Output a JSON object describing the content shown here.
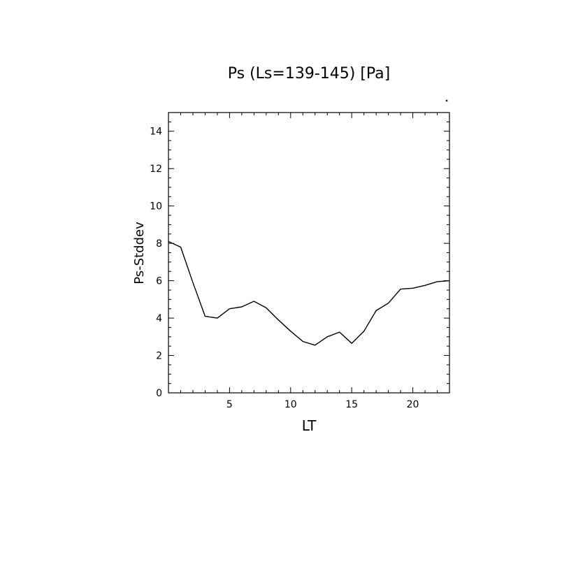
{
  "chart_data": {
    "type": "line",
    "title": "Ps (Ls=139-145) [Pa]",
    "xlabel": "LT",
    "ylabel": "Ps-Stddev",
    "xlim": [
      0,
      23
    ],
    "ylim": [
      0,
      15
    ],
    "x_ticks": [
      5,
      10,
      15,
      20
    ],
    "y_ticks": [
      0,
      2,
      4,
      6,
      8,
      10,
      12,
      14
    ],
    "grid": false,
    "series": [
      {
        "color": "#000000",
        "x": [
          0,
          1,
          2,
          3,
          4,
          5,
          6,
          7,
          8,
          9,
          10,
          11,
          12,
          13,
          14,
          15,
          16,
          17,
          18,
          19,
          20,
          21,
          22,
          23
        ],
        "y": [
          8.1,
          7.8,
          5.9,
          4.1,
          4.0,
          4.5,
          4.6,
          4.9,
          4.55,
          3.9,
          3.3,
          2.75,
          2.55,
          3.0,
          3.25,
          2.65,
          3.3,
          4.4,
          4.8,
          5.55,
          5.6,
          5.75,
          5.95,
          6.0
        ]
      }
    ]
  }
}
